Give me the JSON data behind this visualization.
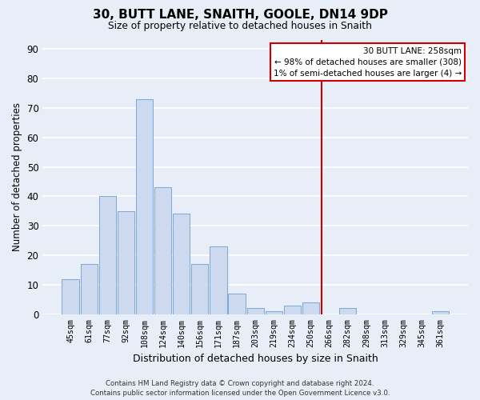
{
  "title": "30, BUTT LANE, SNAITH, GOOLE, DN14 9DP",
  "subtitle": "Size of property relative to detached houses in Snaith",
  "xlabel": "Distribution of detached houses by size in Snaith",
  "ylabel": "Number of detached properties",
  "bar_labels": [
    "45sqm",
    "61sqm",
    "77sqm",
    "92sqm",
    "108sqm",
    "124sqm",
    "140sqm",
    "156sqm",
    "171sqm",
    "187sqm",
    "203sqm",
    "219sqm",
    "234sqm",
    "250sqm",
    "266sqm",
    "282sqm",
    "298sqm",
    "313sqm",
    "329sqm",
    "345sqm",
    "361sqm"
  ],
  "bar_values": [
    12,
    17,
    40,
    35,
    73,
    43,
    34,
    17,
    23,
    7,
    2,
    1,
    3,
    4,
    0,
    2,
    0,
    0,
    0,
    0,
    1
  ],
  "bar_color": "#ccd9ee",
  "bar_edge_color": "#7aa8d8",
  "ylim": [
    0,
    93
  ],
  "yticks": [
    0,
    10,
    20,
    30,
    40,
    50,
    60,
    70,
    80,
    90
  ],
  "reference_line_color": "#cc0000",
  "annotation_title": "30 BUTT LANE: 258sqm",
  "annotation_line1": "← 98% of detached houses are smaller (308)",
  "annotation_line2": "1% of semi-detached houses are larger (4) →",
  "annotation_box_facecolor": "#ffffff",
  "annotation_box_edgecolor": "#cc0000",
  "footer_line1": "Contains HM Land Registry data © Crown copyright and database right 2024.",
  "footer_line2": "Contains public sector information licensed under the Open Government Licence v3.0.",
  "background_color": "#e8eef8",
  "grid_color": "#ffffff"
}
